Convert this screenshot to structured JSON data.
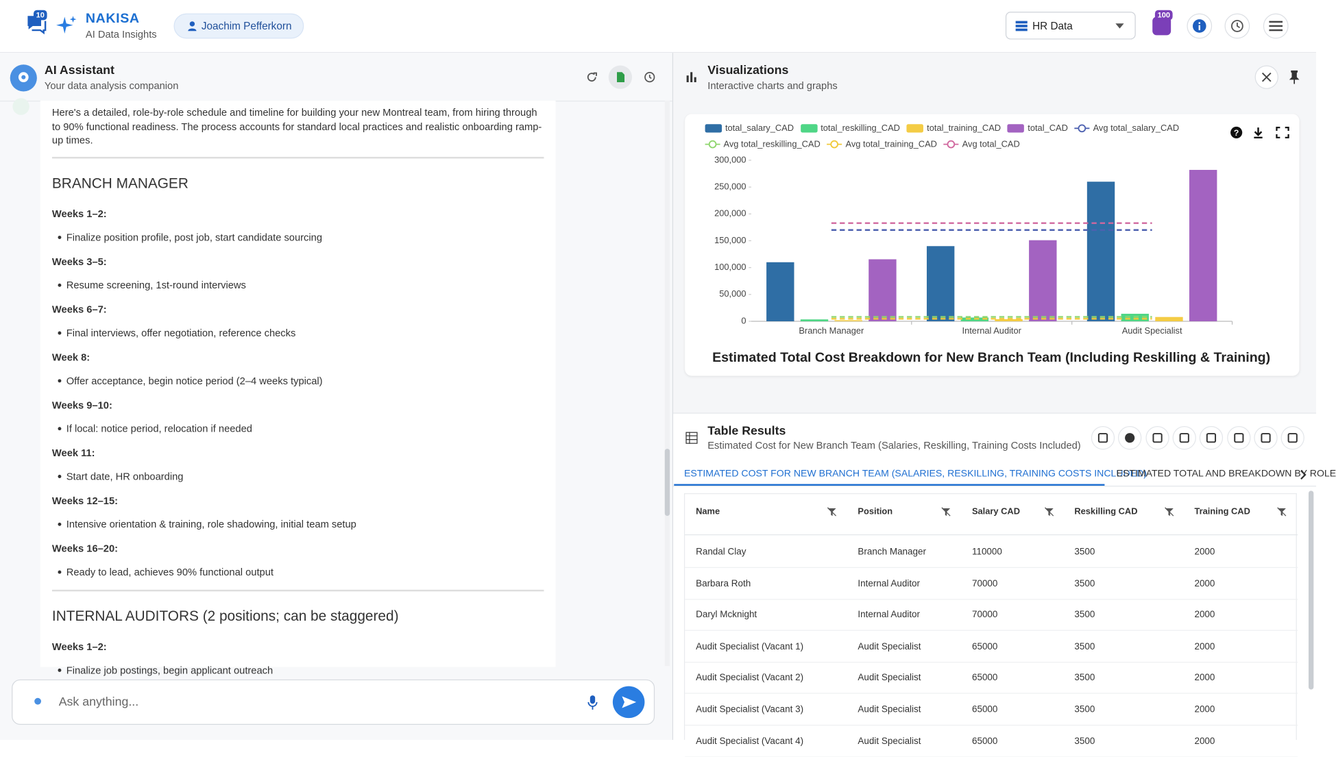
{
  "header": {
    "message_count": "10",
    "brand": "NAKISA",
    "tagline": "AI Data Insights",
    "user": "Joachim Pefferkorn",
    "dataset": "HR Data",
    "notification_count": "100"
  },
  "assistant": {
    "title": "AI Assistant",
    "subtitle": "Your data analysis companion",
    "intro": "Here's a detailed, role-by-role schedule and timeline for building your new Montreal team, from hiring through to 90% functional readiness. The process accounts for standard local practices and realistic onboarding ramp-up times.",
    "sections": [
      {
        "heading": "BRANCH MANAGER",
        "steps": [
          {
            "period": "Weeks 1–2:",
            "items": [
              "Finalize position profile, post job, start candidate sourcing"
            ]
          },
          {
            "period": "Weeks 3–5:",
            "items": [
              "Resume screening, 1st-round interviews"
            ]
          },
          {
            "period": "Weeks 6–7:",
            "items": [
              "Final interviews, offer negotiation, reference checks"
            ]
          },
          {
            "period": "Week 8:",
            "items": [
              "Offer acceptance, begin notice period (2–4 weeks typical)"
            ]
          },
          {
            "period": "Weeks 9–10:",
            "items": [
              "If local: notice period, relocation if needed"
            ]
          },
          {
            "period": "Week 11:",
            "items": [
              "Start date, HR onboarding"
            ]
          },
          {
            "period": "Weeks 12–15:",
            "items": [
              "Intensive orientation & training, role shadowing, initial team setup"
            ]
          },
          {
            "period": "Weeks 16–20:",
            "items": [
              "Ready to lead, achieves 90% functional output"
            ]
          }
        ]
      },
      {
        "heading": "INTERNAL AUDITORS (2 positions; can be staggered)",
        "steps": [
          {
            "period": "Weeks 1–2:",
            "items": [
              "Finalize job postings, begin applicant outreach"
            ]
          }
        ]
      }
    ],
    "input_placeholder": "Ask anything..."
  },
  "visualizations": {
    "title": "Visualizations",
    "subtitle": "Interactive charts and graphs"
  },
  "chart_data": {
    "type": "bar",
    "title": "Estimated Total Cost Breakdown for New Branch Team (Including Reskilling & Training)",
    "categories": [
      "Branch Manager",
      "Internal Auditor",
      "Audit Specialist"
    ],
    "series": [
      {
        "name": "total_salary_CAD",
        "type": "bar",
        "color": "#2f6ea5",
        "values": [
          110000,
          140000,
          260000
        ]
      },
      {
        "name": "total_reskilling_CAD",
        "type": "bar",
        "color": "#4fd686",
        "values": [
          3500,
          7000,
          14000
        ]
      },
      {
        "name": "total_training_CAD",
        "type": "bar",
        "color": "#f4cc45",
        "values": [
          2000,
          4000,
          8000
        ]
      },
      {
        "name": "total_CAD",
        "type": "bar",
        "color": "#a363c1",
        "values": [
          115500,
          151000,
          282000
        ]
      },
      {
        "name": "Avg total_salary_CAD",
        "type": "line",
        "color": "#4d61b0",
        "values": [
          170000,
          170000,
          170000
        ]
      },
      {
        "name": "Avg total_reskilling_CAD",
        "type": "line",
        "color": "#8fd66e",
        "values": [
          8167,
          8167,
          8167
        ]
      },
      {
        "name": "Avg total_training_CAD",
        "type": "line",
        "color": "#f0c93a",
        "values": [
          4667,
          4667,
          4667
        ]
      },
      {
        "name": "Avg total_CAD",
        "type": "line",
        "color": "#d0679e",
        "values": [
          182833,
          182833,
          182833
        ]
      }
    ],
    "ylim": [
      0,
      300000
    ],
    "yticks": [
      0,
      {
        "value": 50000,
        "label": "50,000"
      },
      {
        "value": 100000,
        "label": "100,000"
      },
      {
        "value": 150000,
        "label": "150,000"
      },
      {
        "value": 200000,
        "label": "200,000"
      },
      {
        "value": 250000,
        "label": "250,000"
      },
      {
        "value": 300000,
        "label": "300,000"
      }
    ],
    "grid": false
  },
  "table": {
    "title": "Table Results",
    "subtitle": "Estimated Cost for New Branch Team (Salaries, Reskilling, Training Costs Included)",
    "tabs": [
      "ESTIMATED COST FOR NEW BRANCH TEAM (SALARIES, RESKILLING, TRAINING COSTS INCLUDED)",
      "ESTIMATED TOTAL AND BREAKDOWN BY ROLE"
    ],
    "columns": [
      "Name",
      "Position",
      "Salary CAD",
      "Reskilling CAD",
      "Training CAD"
    ],
    "rows": [
      [
        "Randal Clay",
        "Branch Manager",
        110000,
        3500,
        2000
      ],
      [
        "Barbara Roth",
        "Internal Auditor",
        70000,
        3500,
        2000
      ],
      [
        "Daryl Mcknight",
        "Internal Auditor",
        70000,
        3500,
        2000
      ],
      [
        "Audit Specialist (Vacant 1)",
        "Audit Specialist",
        65000,
        3500,
        2000
      ],
      [
        "Audit Specialist (Vacant 2)",
        "Audit Specialist",
        65000,
        3500,
        2000
      ],
      [
        "Audit Specialist (Vacant 3)",
        "Audit Specialist",
        65000,
        3500,
        2000
      ],
      [
        "Audit Specialist (Vacant 4)",
        "Audit Specialist",
        65000,
        3500,
        2000
      ]
    ]
  }
}
